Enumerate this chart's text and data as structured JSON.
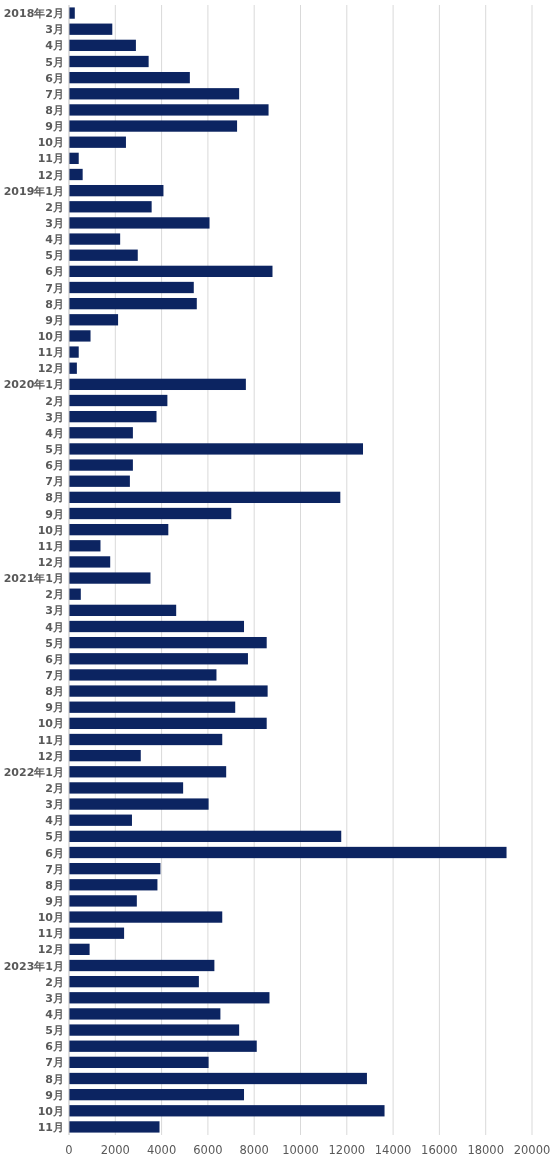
{
  "chart_data": {
    "type": "bar",
    "orientation": "horizontal",
    "color": "#0c2461",
    "grid": "x",
    "xlim": [
      0,
      20000
    ],
    "xticks": [
      0,
      2000,
      4000,
      6000,
      8000,
      10000,
      12000,
      14000,
      16000,
      18000,
      20000
    ],
    "categories": [
      "2018年2月",
      "3月",
      "4月",
      "5月",
      "6月",
      "7月",
      "8月",
      "9月",
      "10月",
      "11月",
      "12月",
      "2019年1月",
      "2月",
      "3月",
      "4月",
      "5月",
      "6月",
      "7月",
      "8月",
      "9月",
      "10月",
      "11月",
      "12月",
      "2020年1月",
      "2月",
      "3月",
      "4月",
      "5月",
      "6月",
      "7月",
      "8月",
      "9月",
      "10月",
      "11月",
      "12月",
      "2021年1月",
      "2月",
      "3月",
      "4月",
      "5月",
      "6月",
      "7月",
      "8月",
      "9月",
      "10月",
      "11月",
      "12月",
      "2022年1月",
      "2月",
      "3月",
      "4月",
      "5月",
      "6月",
      "7月",
      "8月",
      "9月",
      "10月",
      "11月",
      "12月",
      "2023年1月",
      "2月",
      "3月",
      "4月",
      "5月",
      "6月",
      "7月",
      "8月",
      "9月",
      "10月",
      "11月"
    ],
    "values": [
      250,
      1870,
      2890,
      3440,
      5220,
      7350,
      8620,
      7260,
      2460,
      420,
      590,
      4080,
      3570,
      6070,
      2210,
      2970,
      8790,
      5390,
      5520,
      2120,
      930,
      420,
      340,
      7640,
      4250,
      3780,
      2760,
      12700,
      2760,
      2630,
      11720,
      7010,
      4290,
      1360,
      1780,
      3520,
      510,
      4630,
      7560,
      8540,
      7730,
      6370,
      8580,
      7180,
      8540,
      6620,
      3100,
      6790,
      4930,
      6030,
      2720,
      11760,
      18900,
      3950,
      3820,
      2930,
      6620,
      2380,
      890,
      6280,
      5610,
      8660,
      6540,
      7350,
      8110,
      6030,
      12870,
      7560,
      13630,
      3910
    ]
  }
}
